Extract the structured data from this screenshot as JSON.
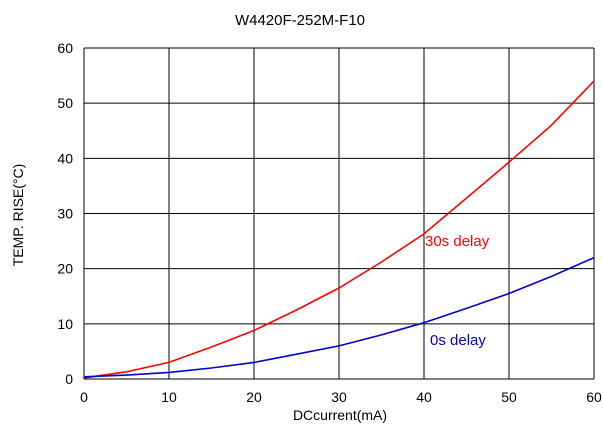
{
  "chart_data": {
    "type": "line",
    "title": "W4420F-252M-F10",
    "xlabel": "DCcurrent(mA)",
    "ylabel": "TEMP. RISE(°C)",
    "xlim": [
      0,
      60
    ],
    "ylim": [
      0,
      60
    ],
    "x_ticks": [
      "0",
      "10",
      "20",
      "30",
      "40",
      "50",
      "60"
    ],
    "y_ticks": [
      "0",
      "10",
      "20",
      "30",
      "40",
      "50",
      "60"
    ],
    "grid": true,
    "legend": "none",
    "series": [
      {
        "name": "30s delay",
        "color": "#ff0000",
        "x": [
          0,
          5,
          10,
          15,
          20,
          25,
          30,
          35,
          40,
          45,
          50,
          55,
          60
        ],
        "y": [
          0.2,
          1.3,
          3.0,
          5.8,
          8.8,
          12.5,
          16.5,
          21.2,
          26.3,
          32.8,
          39.3,
          46.0,
          54.0
        ]
      },
      {
        "name": "0s delay",
        "color": "#0000cc",
        "x": [
          0,
          5,
          10,
          15,
          20,
          25,
          30,
          35,
          40,
          45,
          50,
          55,
          60
        ],
        "y": [
          0.4,
          0.7,
          1.2,
          2.0,
          3.0,
          4.5,
          6.0,
          8.0,
          10.2,
          12.8,
          15.5,
          18.6,
          22.0
        ]
      }
    ]
  }
}
